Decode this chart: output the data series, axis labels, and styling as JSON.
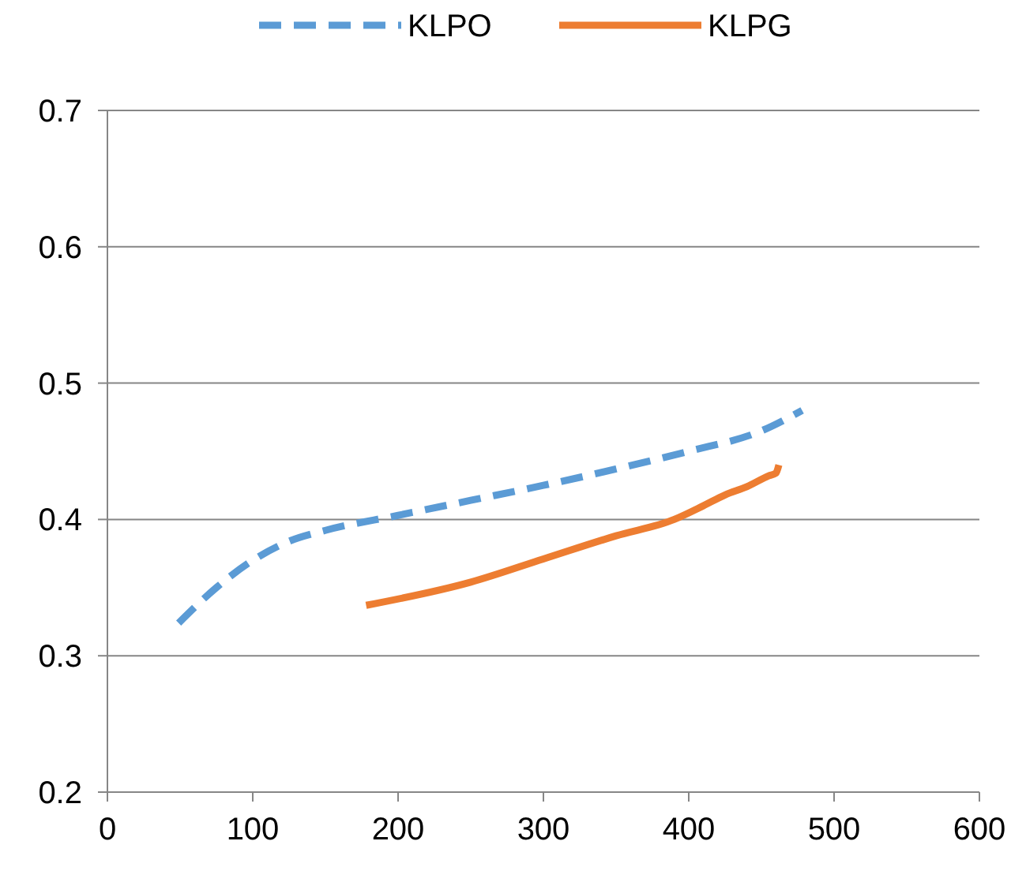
{
  "chart_data": {
    "type": "line",
    "xlim": [
      0,
      600
    ],
    "xticks": [
      0,
      100,
      200,
      300,
      400,
      500,
      600
    ],
    "ylim": [
      0.2,
      0.7
    ],
    "yticks": [
      {
        "value": 0.2,
        "label": "0.2"
      },
      {
        "value": 0.3,
        "label": "0.3"
      },
      {
        "value": 0.4,
        "label": "0.4"
      },
      {
        "value": 0.5,
        "label": "0.5"
      },
      {
        "value": 0.6,
        "label": "0.6"
      },
      {
        "value": 0.7,
        "label": "0.7"
      }
    ],
    "grid": "y",
    "legend": "top",
    "series": [
      {
        "name": "KLPO",
        "color": "#5b9bd5",
        "line_style": "dashed",
        "x": [
          49,
          75,
          100,
          125,
          150,
          200,
          250,
          300,
          350,
          400,
          450,
          478
        ],
        "values": [
          0.324,
          0.35,
          0.37,
          0.384,
          0.392,
          0.403,
          0.414,
          0.425,
          0.437,
          0.45,
          0.465,
          0.48
        ]
      },
      {
        "name": "KLPG",
        "color": "#ed7d31",
        "line_style": "solid",
        "x": [
          178,
          250,
          300,
          350,
          390,
          410,
          425,
          440,
          455,
          460,
          462
        ],
        "values": [
          0.337,
          0.354,
          0.371,
          0.388,
          0.4,
          0.41,
          0.418,
          0.424,
          0.432,
          0.434,
          0.44
        ]
      }
    ]
  }
}
